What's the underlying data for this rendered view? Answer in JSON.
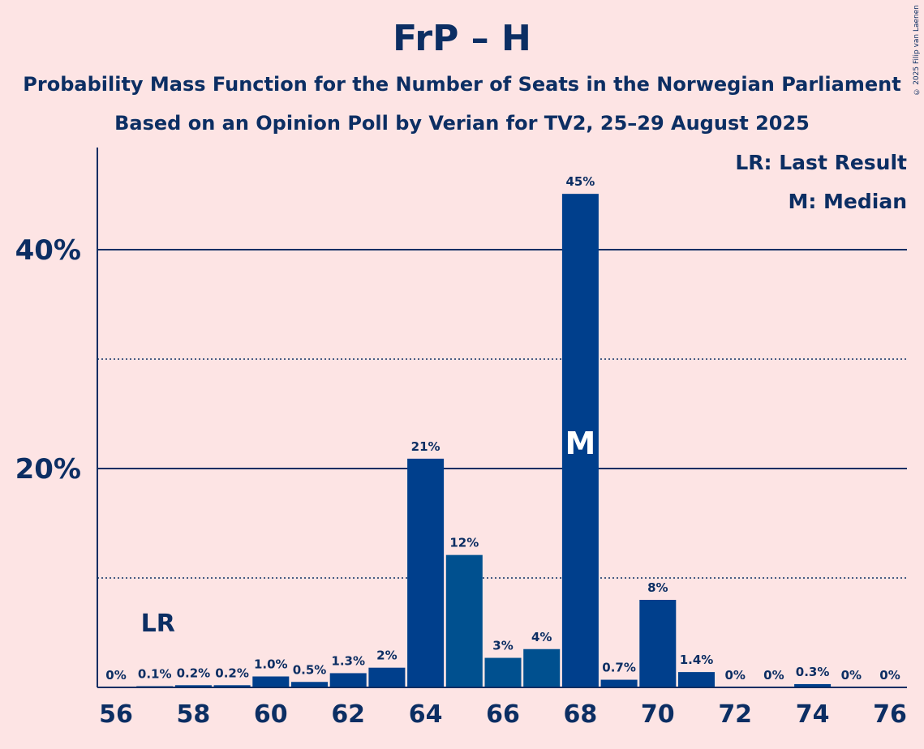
{
  "title": "FrP – H",
  "subtitle1": "Probability Mass Function for the Number of Seats in the Norwegian Parliament",
  "subtitle2": "Based on an Opinion Poll by Verian for TV2, 25–29 August 2025",
  "copyright": "© 2025 Filip van Laenen",
  "legend": {
    "lr": "LR: Last Result",
    "m": "M: Median"
  },
  "colors": {
    "bar_dark": "#003f8c",
    "bar_light": "#00508f",
    "axis": "#0c2e63",
    "background": "#fde4e4"
  },
  "chart_data": {
    "type": "bar",
    "x": [
      56,
      57,
      58,
      59,
      60,
      61,
      62,
      63,
      64,
      65,
      66,
      67,
      68,
      69,
      70,
      71,
      72,
      73,
      74,
      75,
      76
    ],
    "values": [
      0,
      0.1,
      0.2,
      0.2,
      1.0,
      0.5,
      1.3,
      1.8,
      20.9,
      12.1,
      2.7,
      3.5,
      45.1,
      0.7,
      8.0,
      1.4,
      0,
      0,
      0.3,
      0,
      0
    ],
    "labels": [
      "0%",
      "0.1%",
      "0.2%",
      "0.2%",
      "1.0%",
      "0.5%",
      "1.3%",
      "2%",
      "21%",
      "12%",
      "3%",
      "4%",
      "45%",
      "0.7%",
      "8%",
      "1.4%",
      "0%",
      "0%",
      "0.3%",
      "0%",
      "0%"
    ],
    "x_tick_labels": [
      "56",
      "58",
      "60",
      "62",
      "64",
      "66",
      "68",
      "70",
      "72",
      "74",
      "76"
    ],
    "y_tick_labels": [
      "20%",
      "40%"
    ],
    "ylim": [
      0,
      49
    ],
    "last_result_seat": 57,
    "last_result_label": "LR",
    "median_seat": 68,
    "median_label": "M",
    "grid": {
      "solid": [
        20,
        40
      ],
      "dotted": [
        10,
        30
      ]
    },
    "legend_position": "top-right"
  }
}
